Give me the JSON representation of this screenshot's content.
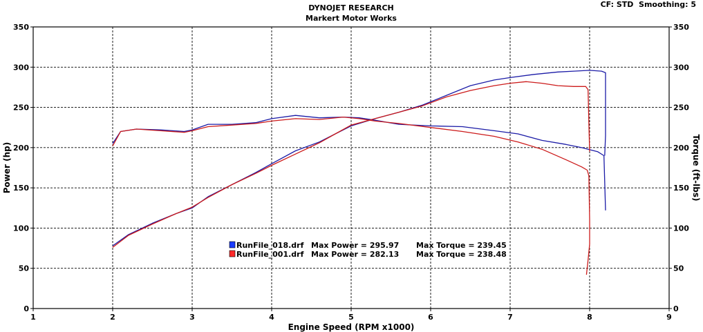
{
  "header": {
    "title": "DYNOJET RESEARCH",
    "subtitle": "Markert Motor Works",
    "correction": "CF: STD  Smoothing: 5"
  },
  "chart_data": {
    "type": "line",
    "xlabel": "Engine Speed (RPM x1000)",
    "ylabel_left": "Power (hp)",
    "ylabel_right": "Torque (ft-lbs)",
    "xlim": [
      1,
      9
    ],
    "ylim": [
      0,
      350
    ],
    "x_ticks": [
      "1",
      "2",
      "3",
      "4",
      "5",
      "6",
      "7",
      "8",
      "9"
    ],
    "y_ticks": [
      "0",
      "50",
      "100",
      "150",
      "200",
      "250",
      "300",
      "350"
    ],
    "grid": true,
    "legend": [
      {
        "file": "RunFile_018.drf",
        "power_label": "Max Power = 295.97",
        "torque_label": "Max Torque = 239.45",
        "color": "#1a1aa6",
        "swatch": "#1a3cff"
      },
      {
        "file": "RunFile_001.drf",
        "power_label": "Max Power = 282.13",
        "torque_label": "Max Torque = 238.48",
        "color": "#cc1a1a",
        "swatch": "#ff2a2a"
      }
    ],
    "series": [
      {
        "name": "RunFile_018.drf power",
        "color": "#1a1aa6",
        "x": [
          2.0,
          2.2,
          2.5,
          2.8,
          3.0,
          3.2,
          3.5,
          3.8,
          4.0,
          4.3,
          4.6,
          4.8,
          5.0,
          5.3,
          5.6,
          5.9,
          6.2,
          6.5,
          6.8,
          7.0,
          7.3,
          7.6,
          7.8,
          8.0,
          8.15,
          8.2,
          8.2,
          8.19
        ],
        "y": [
          78,
          92,
          106,
          118,
          125,
          139,
          154,
          169,
          180,
          196,
          207,
          217,
          227,
          236,
          244,
          253,
          265,
          277,
          284,
          287,
          291,
          294,
          295,
          296,
          295,
          293,
          215,
          190
        ]
      },
      {
        "name": "RunFile_018.drf torque",
        "color": "#1a1aa6",
        "x": [
          2.0,
          2.1,
          2.3,
          2.6,
          2.9,
          3.0,
          3.2,
          3.5,
          3.8,
          4.0,
          4.3,
          4.6,
          4.9,
          5.1,
          5.3,
          5.6,
          6.0,
          6.4,
          6.8,
          7.1,
          7.4,
          7.7,
          7.9,
          8.1,
          8.18,
          8.2
        ],
        "y": [
          205,
          220,
          223,
          222,
          220,
          222,
          229,
          229,
          231,
          236,
          240,
          237,
          238,
          237,
          234,
          229,
          227,
          226,
          221,
          217,
          209,
          204,
          200,
          195,
          190,
          122
        ]
      },
      {
        "name": "RunFile_001.drf power",
        "color": "#cc1a1a",
        "x": [
          2.0,
          2.2,
          2.5,
          2.8,
          3.0,
          3.2,
          3.5,
          3.8,
          4.0,
          4.3,
          4.6,
          4.8,
          5.0,
          5.3,
          5.6,
          5.9,
          6.2,
          6.5,
          6.8,
          7.0,
          7.2,
          7.4,
          7.6,
          7.8,
          7.95,
          7.98,
          7.99,
          8.0
        ],
        "y": [
          76,
          91,
          105,
          118,
          126,
          138,
          154,
          168,
          178,
          192,
          206,
          217,
          228,
          236,
          244,
          252,
          263,
          271,
          277,
          280,
          282,
          280,
          277,
          276,
          276,
          272,
          230,
          195
        ]
      },
      {
        "name": "RunFile_001.drf torque",
        "color": "#cc1a1a",
        "x": [
          2.0,
          2.1,
          2.3,
          2.6,
          2.9,
          3.0,
          3.2,
          3.5,
          3.8,
          4.0,
          4.3,
          4.6,
          4.9,
          5.1,
          5.3,
          5.6,
          6.0,
          6.4,
          6.8,
          7.1,
          7.4,
          7.7,
          7.9,
          7.97,
          7.99,
          8.0,
          8.0,
          7.98,
          7.96
        ],
        "y": [
          202,
          220,
          223,
          221,
          219,
          221,
          226,
          228,
          230,
          233,
          236,
          235,
          238,
          236,
          233,
          230,
          225,
          220,
          214,
          207,
          198,
          185,
          176,
          172,
          165,
          110,
          80,
          60,
          42
        ]
      }
    ]
  }
}
